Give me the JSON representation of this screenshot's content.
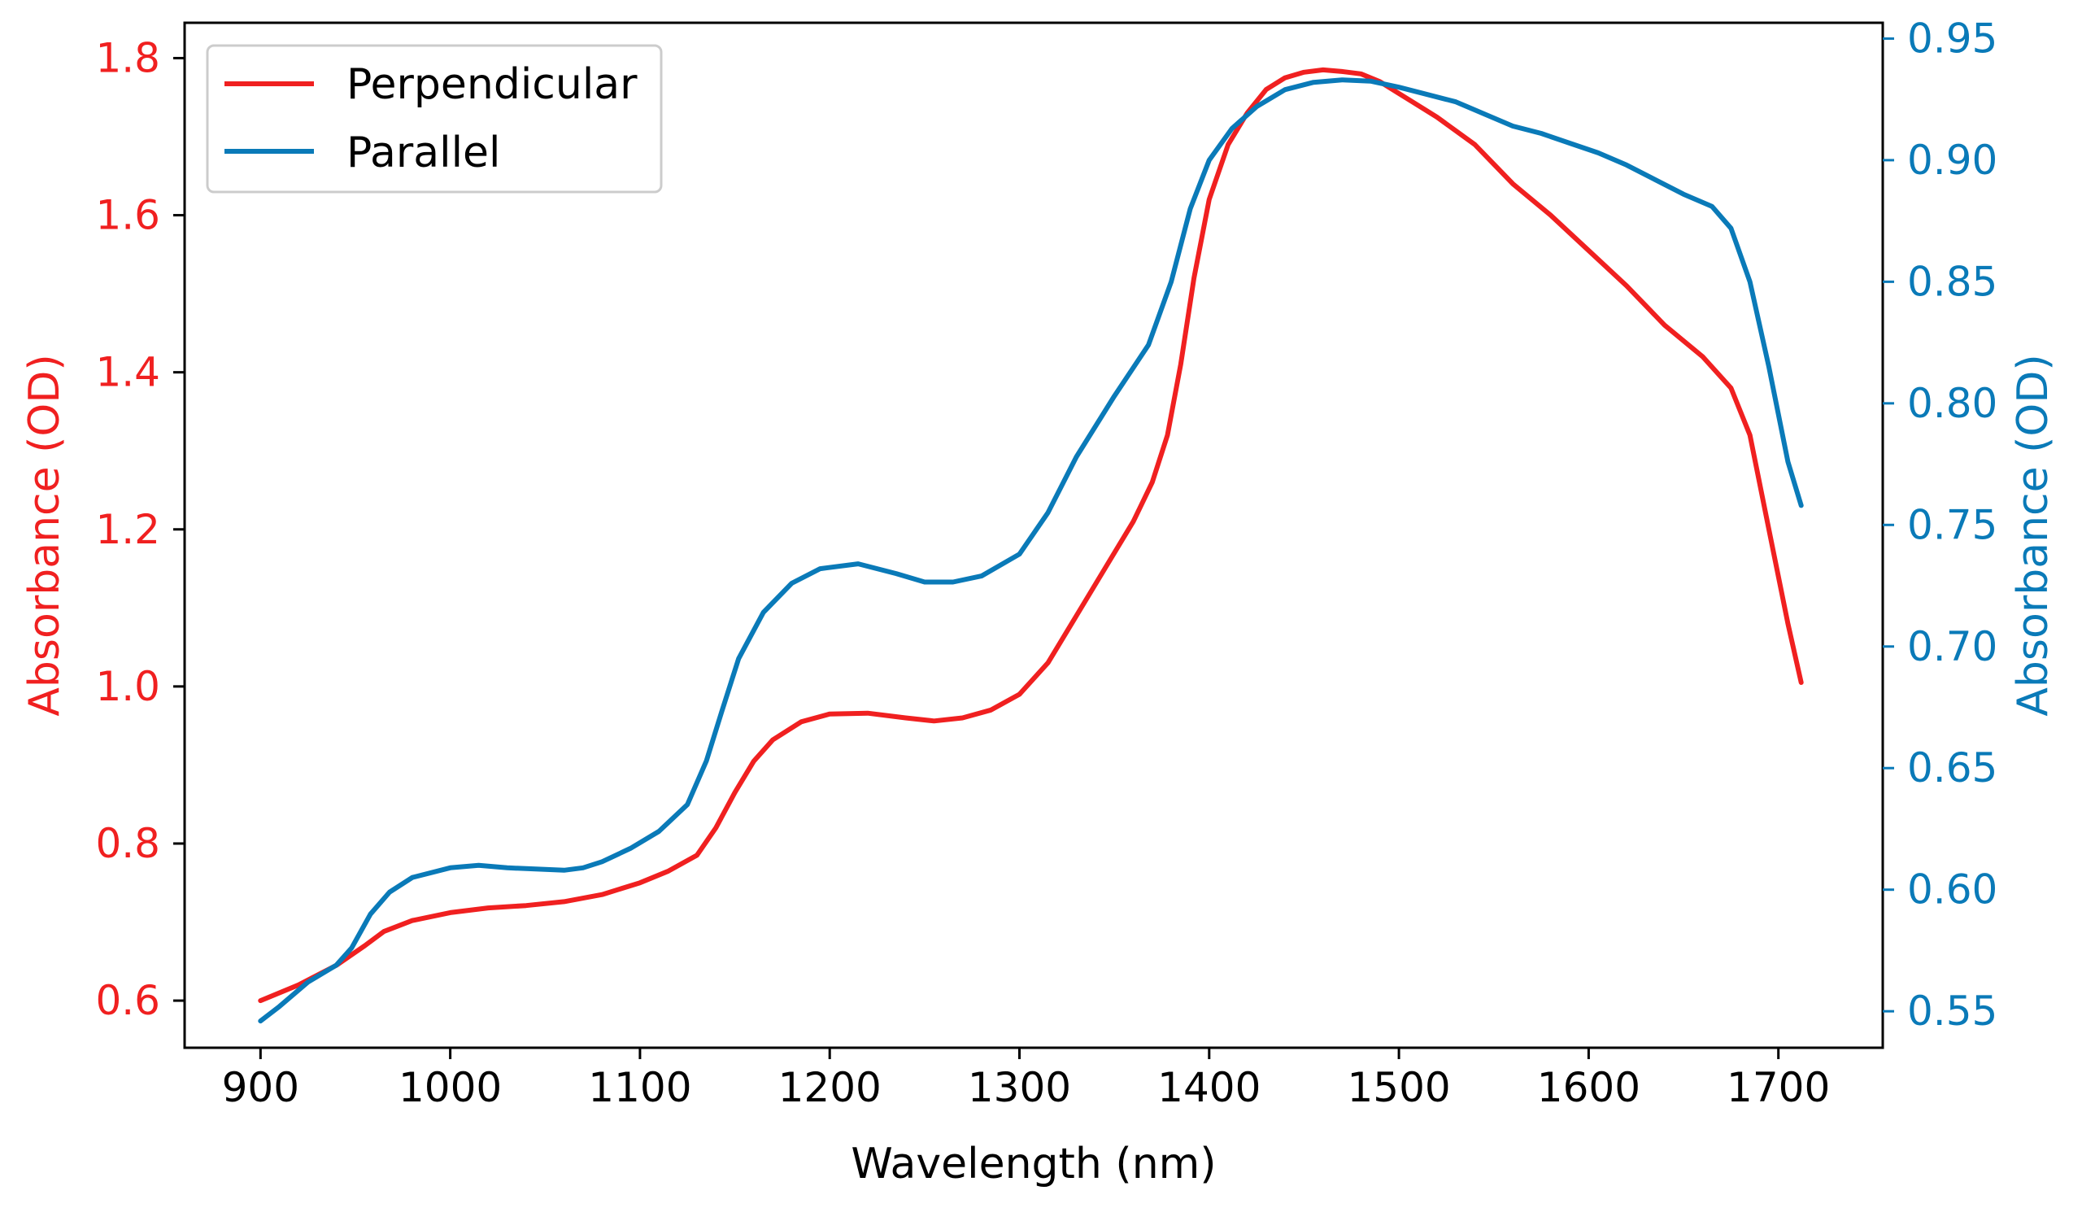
{
  "chart_data": {
    "type": "line",
    "title": "",
    "xlabel": "Wavelength (nm)",
    "ylabel_left": "Absorbance (OD)",
    "ylabel_right": "Absorbance (OD)",
    "xlim": [
      860,
      1755
    ],
    "ylim_left": [
      0.54,
      1.845
    ],
    "ylim_right": [
      0.535,
      0.9565
    ],
    "x_ticks": [
      900,
      1000,
      1100,
      1200,
      1300,
      1400,
      1500,
      1600,
      1700
    ],
    "x_tick_labels": [
      "900",
      "1000",
      "1100",
      "1200",
      "1300",
      "1400",
      "1500",
      "1600",
      "1700"
    ],
    "y_left_ticks": [
      0.6,
      0.8,
      1.0,
      1.2,
      1.4,
      1.6,
      1.8
    ],
    "y_left_tick_labels": [
      "0.6",
      "0.8",
      "1.0",
      "1.2",
      "1.4",
      "1.6",
      "1.8"
    ],
    "y_right_ticks": [
      0.55,
      0.6,
      0.65,
      0.7,
      0.75,
      0.8,
      0.85,
      0.9,
      0.95
    ],
    "y_right_tick_labels": [
      "0.55",
      "0.60",
      "0.65",
      "0.70",
      "0.75",
      "0.80",
      "0.85",
      "0.90",
      "0.95"
    ],
    "grid": false,
    "legend_position": "top-left",
    "colors": {
      "left_axis": "#f02020",
      "right_axis": "#0a7ab8"
    },
    "series": [
      {
        "name": "Perpendicular",
        "axis": "left",
        "color": "#f02020",
        "points": [
          [
            900,
            0.6
          ],
          [
            920,
            0.62
          ],
          [
            940,
            0.645
          ],
          [
            955,
            0.67
          ],
          [
            965,
            0.688
          ],
          [
            980,
            0.702
          ],
          [
            1000,
            0.712
          ],
          [
            1020,
            0.718
          ],
          [
            1040,
            0.721
          ],
          [
            1060,
            0.726
          ],
          [
            1080,
            0.735
          ],
          [
            1100,
            0.75
          ],
          [
            1115,
            0.765
          ],
          [
            1130,
            0.785
          ],
          [
            1140,
            0.82
          ],
          [
            1150,
            0.865
          ],
          [
            1160,
            0.905
          ],
          [
            1170,
            0.932
          ],
          [
            1185,
            0.955
          ],
          [
            1200,
            0.965
          ],
          [
            1220,
            0.966
          ],
          [
            1240,
            0.96
          ],
          [
            1255,
            0.956
          ],
          [
            1270,
            0.96
          ],
          [
            1285,
            0.97
          ],
          [
            1300,
            0.99
          ],
          [
            1315,
            1.03
          ],
          [
            1330,
            1.09
          ],
          [
            1345,
            1.15
          ],
          [
            1360,
            1.21
          ],
          [
            1370,
            1.26
          ],
          [
            1378,
            1.32
          ],
          [
            1385,
            1.41
          ],
          [
            1392,
            1.52
          ],
          [
            1400,
            1.62
          ],
          [
            1410,
            1.69
          ],
          [
            1420,
            1.73
          ],
          [
            1430,
            1.76
          ],
          [
            1440,
            1.775
          ],
          [
            1450,
            1.782
          ],
          [
            1460,
            1.785
          ],
          [
            1470,
            1.783
          ],
          [
            1480,
            1.78
          ],
          [
            1490,
            1.77
          ],
          [
            1500,
            1.755
          ],
          [
            1520,
            1.725
          ],
          [
            1540,
            1.69
          ],
          [
            1560,
            1.64
          ],
          [
            1580,
            1.6
          ],
          [
            1600,
            1.555
          ],
          [
            1620,
            1.51
          ],
          [
            1640,
            1.46
          ],
          [
            1660,
            1.42
          ],
          [
            1675,
            1.38
          ],
          [
            1685,
            1.32
          ],
          [
            1695,
            1.2
          ],
          [
            1705,
            1.08
          ],
          [
            1712,
            1.005
          ]
        ]
      },
      {
        "name": "Parallel",
        "axis": "right",
        "color": "#0a7ab8",
        "points": [
          [
            900,
            0.546
          ],
          [
            910,
            0.552
          ],
          [
            925,
            0.562
          ],
          [
            940,
            0.569
          ],
          [
            948,
            0.576
          ],
          [
            958,
            0.59
          ],
          [
            968,
            0.599
          ],
          [
            980,
            0.605
          ],
          [
            1000,
            0.609
          ],
          [
            1015,
            0.61
          ],
          [
            1030,
            0.609
          ],
          [
            1045,
            0.6085
          ],
          [
            1060,
            0.608
          ],
          [
            1070,
            0.609
          ],
          [
            1080,
            0.6115
          ],
          [
            1095,
            0.617
          ],
          [
            1110,
            0.624
          ],
          [
            1125,
            0.635
          ],
          [
            1135,
            0.653
          ],
          [
            1143,
            0.673
          ],
          [
            1152,
            0.695
          ],
          [
            1165,
            0.714
          ],
          [
            1180,
            0.726
          ],
          [
            1195,
            0.732
          ],
          [
            1215,
            0.734
          ],
          [
            1235,
            0.73
          ],
          [
            1250,
            0.7265
          ],
          [
            1265,
            0.7265
          ],
          [
            1280,
            0.729
          ],
          [
            1300,
            0.738
          ],
          [
            1315,
            0.755
          ],
          [
            1330,
            0.778
          ],
          [
            1350,
            0.803
          ],
          [
            1368,
            0.824
          ],
          [
            1380,
            0.85
          ],
          [
            1390,
            0.88
          ],
          [
            1400,
            0.9
          ],
          [
            1412,
            0.913
          ],
          [
            1425,
            0.922
          ],
          [
            1440,
            0.929
          ],
          [
            1455,
            0.932
          ],
          [
            1470,
            0.933
          ],
          [
            1485,
            0.9325
          ],
          [
            1500,
            0.93
          ],
          [
            1515,
            0.927
          ],
          [
            1530,
            0.924
          ],
          [
            1545,
            0.919
          ],
          [
            1560,
            0.914
          ],
          [
            1575,
            0.911
          ],
          [
            1590,
            0.907
          ],
          [
            1605,
            0.903
          ],
          [
            1620,
            0.898
          ],
          [
            1635,
            0.892
          ],
          [
            1650,
            0.886
          ],
          [
            1665,
            0.881
          ],
          [
            1675,
            0.872
          ],
          [
            1685,
            0.85
          ],
          [
            1695,
            0.815
          ],
          [
            1705,
            0.776
          ],
          [
            1712,
            0.758
          ]
        ]
      }
    ]
  }
}
